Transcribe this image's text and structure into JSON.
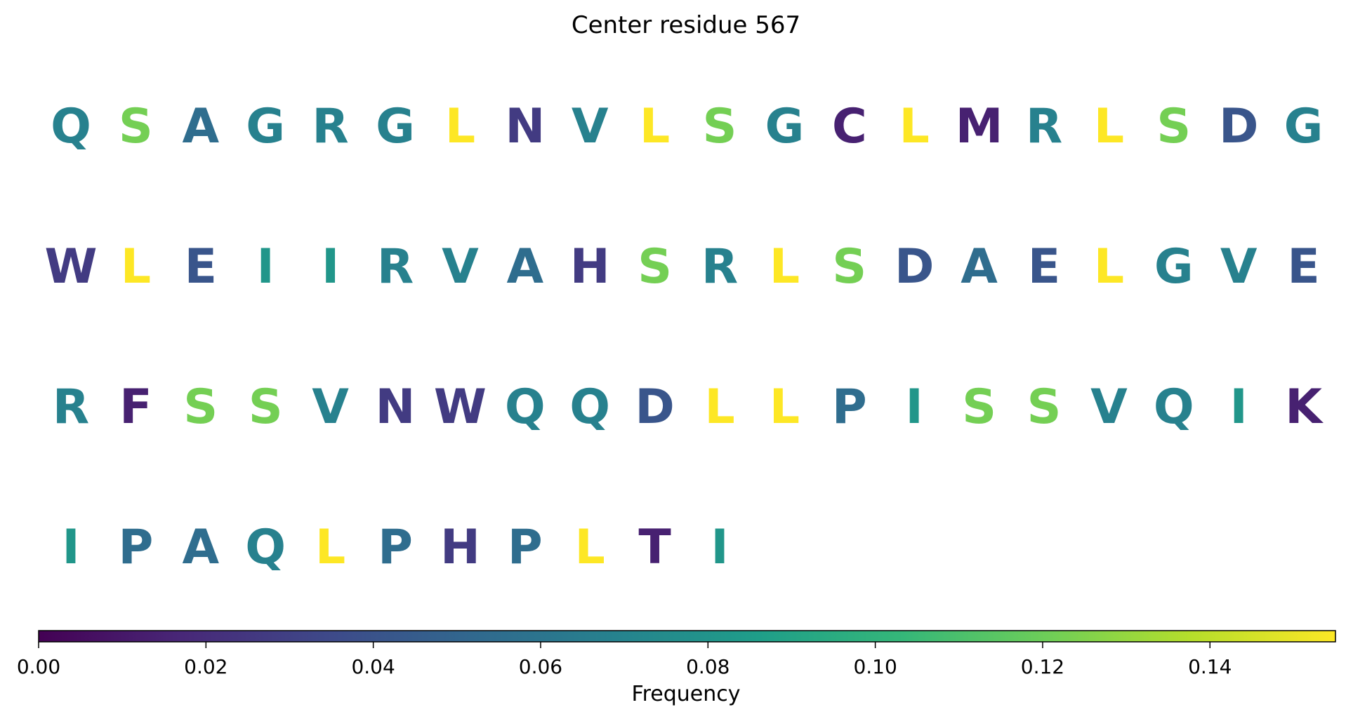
{
  "chart_data": {
    "type": "sequence-colormap",
    "title": "Center residue 567",
    "colormap": "viridis",
    "residues": [
      {
        "letter": "Q",
        "frequency": 0.068
      },
      {
        "letter": "S",
        "frequency": 0.122
      },
      {
        "letter": "A",
        "frequency": 0.055
      },
      {
        "letter": "G",
        "frequency": 0.068
      },
      {
        "letter": "R",
        "frequency": 0.068
      },
      {
        "letter": "G",
        "frequency": 0.068
      },
      {
        "letter": "L",
        "frequency": 0.155
      },
      {
        "letter": "N",
        "frequency": 0.027
      },
      {
        "letter": "V",
        "frequency": 0.068
      },
      {
        "letter": "L",
        "frequency": 0.155
      },
      {
        "letter": "S",
        "frequency": 0.122
      },
      {
        "letter": "G",
        "frequency": 0.068
      },
      {
        "letter": "C",
        "frequency": 0.014
      },
      {
        "letter": "L",
        "frequency": 0.155
      },
      {
        "letter": "M",
        "frequency": 0.014
      },
      {
        "letter": "R",
        "frequency": 0.068
      },
      {
        "letter": "L",
        "frequency": 0.155
      },
      {
        "letter": "S",
        "frequency": 0.122
      },
      {
        "letter": "D",
        "frequency": 0.041
      },
      {
        "letter": "G",
        "frequency": 0.068
      },
      {
        "letter": "W",
        "frequency": 0.027
      },
      {
        "letter": "L",
        "frequency": 0.155
      },
      {
        "letter": "E",
        "frequency": 0.041
      },
      {
        "letter": "I",
        "frequency": 0.081
      },
      {
        "letter": "I",
        "frequency": 0.081
      },
      {
        "letter": "R",
        "frequency": 0.068
      },
      {
        "letter": "V",
        "frequency": 0.068
      },
      {
        "letter": "A",
        "frequency": 0.055
      },
      {
        "letter": "H",
        "frequency": 0.027
      },
      {
        "letter": "S",
        "frequency": 0.122
      },
      {
        "letter": "R",
        "frequency": 0.068
      },
      {
        "letter": "L",
        "frequency": 0.155
      },
      {
        "letter": "S",
        "frequency": 0.122
      },
      {
        "letter": "D",
        "frequency": 0.041
      },
      {
        "letter": "A",
        "frequency": 0.055
      },
      {
        "letter": "E",
        "frequency": 0.041
      },
      {
        "letter": "L",
        "frequency": 0.155
      },
      {
        "letter": "G",
        "frequency": 0.068
      },
      {
        "letter": "V",
        "frequency": 0.068
      },
      {
        "letter": "E",
        "frequency": 0.041
      },
      {
        "letter": "R",
        "frequency": 0.068
      },
      {
        "letter": "F",
        "frequency": 0.014
      },
      {
        "letter": "S",
        "frequency": 0.122
      },
      {
        "letter": "S",
        "frequency": 0.122
      },
      {
        "letter": "V",
        "frequency": 0.068
      },
      {
        "letter": "N",
        "frequency": 0.027
      },
      {
        "letter": "W",
        "frequency": 0.027
      },
      {
        "letter": "Q",
        "frequency": 0.068
      },
      {
        "letter": "Q",
        "frequency": 0.068
      },
      {
        "letter": "D",
        "frequency": 0.041
      },
      {
        "letter": "L",
        "frequency": 0.155
      },
      {
        "letter": "L",
        "frequency": 0.155
      },
      {
        "letter": "P",
        "frequency": 0.055
      },
      {
        "letter": "I",
        "frequency": 0.081
      },
      {
        "letter": "S",
        "frequency": 0.122
      },
      {
        "letter": "S",
        "frequency": 0.122
      },
      {
        "letter": "V",
        "frequency": 0.068
      },
      {
        "letter": "Q",
        "frequency": 0.068
      },
      {
        "letter": "I",
        "frequency": 0.081
      },
      {
        "letter": "K",
        "frequency": 0.014
      },
      {
        "letter": "I",
        "frequency": 0.081
      },
      {
        "letter": "P",
        "frequency": 0.055
      },
      {
        "letter": "A",
        "frequency": 0.055
      },
      {
        "letter": "Q",
        "frequency": 0.068
      },
      {
        "letter": "L",
        "frequency": 0.155
      },
      {
        "letter": "P",
        "frequency": 0.055
      },
      {
        "letter": "H",
        "frequency": 0.027
      },
      {
        "letter": "P",
        "frequency": 0.055
      },
      {
        "letter": "L",
        "frequency": 0.155
      },
      {
        "letter": "T",
        "frequency": 0.014
      },
      {
        "letter": "I",
        "frequency": 0.081
      }
    ],
    "columns_per_row": 20,
    "colorbar": {
      "label": "Frequency",
      "range": [
        0,
        0.155
      ],
      "ticks": [
        0.0,
        0.02,
        0.04,
        0.06,
        0.08,
        0.1,
        0.12,
        0.14
      ],
      "tick_labels": [
        "0.00",
        "0.02",
        "0.04",
        "0.06",
        "0.08",
        "0.10",
        "0.12",
        "0.14"
      ]
    }
  }
}
